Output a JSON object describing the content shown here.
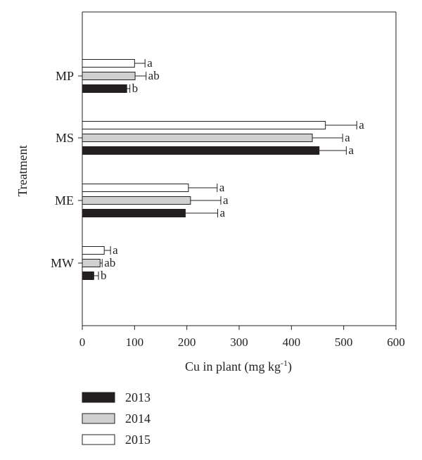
{
  "chart_data": {
    "type": "bar",
    "orientation": "horizontal",
    "xlabel": "Cu in plant (mg kg",
    "xlabel_superscript": "-1",
    "xlabel_suffix": ")",
    "ylabel": "Treatment",
    "xlim": [
      0,
      600
    ],
    "xticks": [
      "0",
      "100",
      "200",
      "300",
      "400",
      "500",
      "600"
    ],
    "categories": [
      "MP",
      "MS",
      "ME",
      "MW"
    ],
    "series": [
      {
        "name": "2015",
        "color": "#ffffff",
        "values": [
          100,
          465,
          203,
          42
        ],
        "errors": [
          20,
          60,
          55,
          12
        ],
        "labels": [
          "a",
          "a",
          "a",
          "a"
        ]
      },
      {
        "name": "2014",
        "color": "#d0d0d0",
        "values": [
          101,
          440,
          207,
          34
        ],
        "errors": [
          21,
          58,
          58,
          4
        ],
        "labels": [
          "ab",
          "a",
          "a",
          "ab"
        ]
      },
      {
        "name": "2013",
        "color": "#231f20",
        "values": [
          85,
          453,
          197,
          22
        ],
        "errors": [
          6,
          52,
          62,
          9
        ],
        "labels": [
          "b",
          "a",
          "a",
          "b"
        ]
      }
    ],
    "legend_order": [
      "2013",
      "2014",
      "2015"
    ],
    "legend_position": "bottom-left",
    "grid": false
  }
}
